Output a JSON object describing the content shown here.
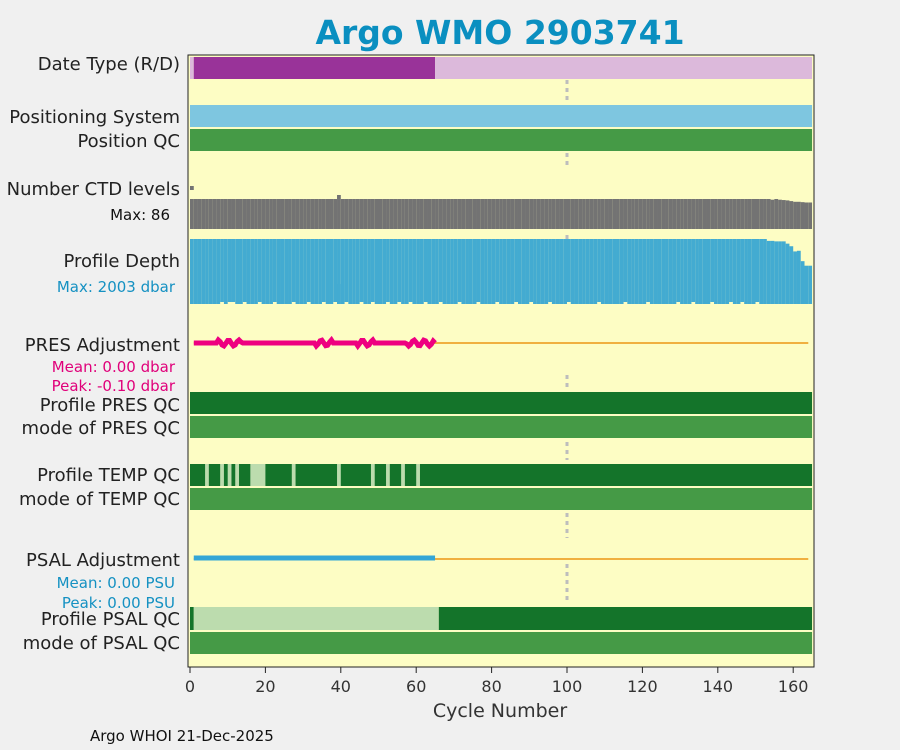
{
  "chart_data": {
    "type": "bar",
    "title": "Argo WMO 2903741",
    "xlabel": "Cycle Number",
    "xlim": [
      0,
      165
    ],
    "xticks": [
      0,
      20,
      40,
      60,
      80,
      100,
      120,
      140,
      160
    ],
    "reference_cycle": 100,
    "footer": "Argo WHOI 21-Dec-2025",
    "rows": {
      "date_type": "Date Type (R/D)",
      "positioning": "Positioning System",
      "position_qc": "Position QC",
      "ctd_levels": "Number CTD levels",
      "profile_depth": "Profile Depth",
      "pres_adj": "PRES Adjustment",
      "profile_pres_qc": "Profile PRES QC",
      "mode_pres_qc": "mode of PRES QC",
      "profile_temp_qc": "Profile TEMP QC",
      "mode_temp_qc": "mode of TEMP QC",
      "psal_adj": "PSAL Adjustment",
      "profile_psal_qc": "Profile PSAL QC",
      "mode_psal_qc": "mode of PSAL QC"
    },
    "ctd_max_label": "Max: 86",
    "depth_max_label": "Max: 2003 dbar",
    "pres_mean_label": "Mean: 0.00 dbar",
    "pres_peak_label": "Peak: -0.10 dbar",
    "psal_mean_label": "Mean: 0.00 PSU",
    "psal_peak_label": "Peak: 0.00 PSU",
    "date_type_segments": [
      {
        "from": 0,
        "to": 1,
        "type": "R"
      },
      {
        "from": 1,
        "to": 65,
        "type": "D"
      },
      {
        "from": 65,
        "to": 165,
        "type": "R"
      }
    ],
    "ctd_levels_max": 86,
    "ctd_dips": [
      {
        "cycle": 154,
        "value": 84
      },
      {
        "cycle": 156,
        "value": 84
      },
      {
        "cycle": 157,
        "value": 83
      },
      {
        "cycle": 158,
        "value": 82
      },
      {
        "cycle": 159,
        "value": 80
      },
      {
        "cycle": 160,
        "value": 78
      },
      {
        "cycle": 161,
        "value": 78
      },
      {
        "cycle": 162,
        "value": 77
      },
      {
        "cycle": 163,
        "value": 76
      },
      {
        "cycle": 164,
        "value": 76
      }
    ],
    "ctd_spike_cycle": 39,
    "depth_max": 2003,
    "depth_short_cycles": [
      8,
      10,
      11,
      14,
      18,
      22,
      27,
      31,
      35,
      38,
      41,
      45,
      48,
      52,
      55,
      58,
      62,
      66,
      71,
      76,
      81,
      86,
      90,
      95,
      100,
      108,
      115,
      121,
      129,
      133,
      138,
      143,
      146,
      150
    ],
    "depth_tail": [
      {
        "cycle": 153,
        "value": 1945
      },
      {
        "cycle": 154,
        "value": 1945
      },
      {
        "cycle": 155,
        "value": 1930
      },
      {
        "cycle": 156,
        "value": 1930
      },
      {
        "cycle": 157,
        "value": 1930
      },
      {
        "cycle": 158,
        "value": 1860
      },
      {
        "cycle": 159,
        "value": 1780
      },
      {
        "cycle": 160,
        "value": 1620
      },
      {
        "cycle": 161,
        "value": 1640
      },
      {
        "cycle": 162,
        "value": 1320
      },
      {
        "cycle": 163,
        "value": 1180
      },
      {
        "cycle": 164,
        "value": 1180
      }
    ],
    "pres_adj_range": [
      1,
      65
    ],
    "psal_adj_range": [
      1,
      65
    ],
    "temp_qc_light": [
      {
        "from": 4,
        "to": 5
      },
      {
        "from": 8,
        "to": 9
      },
      {
        "from": 10,
        "to": 11
      },
      {
        "from": 12,
        "to": 13
      },
      {
        "from": 16,
        "to": 20
      },
      {
        "from": 27,
        "to": 28
      },
      {
        "from": 39,
        "to": 40
      },
      {
        "from": 48,
        "to": 49
      },
      {
        "from": 52,
        "to": 53
      },
      {
        "from": 56,
        "to": 57
      },
      {
        "from": 60,
        "to": 61
      }
    ],
    "psal_qc_segments": [
      {
        "from": 0,
        "to": 1,
        "qc": "good"
      },
      {
        "from": 1,
        "to": 66,
        "qc": "adjusted"
      },
      {
        "from": 66,
        "to": 165,
        "qc": "good"
      }
    ],
    "colors": {
      "background": "#fdfdc4",
      "date_d": "#993399",
      "date_r": "#dcb9db",
      "positioning": "#7ec6e0",
      "qc_mode_green": "#459a46",
      "qc_dark_green": "#14742a",
      "qc_light_green": "#bcdcae",
      "ctd_gray": "#737373",
      "depth_blue": "#43abd1",
      "pres_pink": "#ee0080",
      "psal_blue": "#34a6d6",
      "zero_line": "#f0b040",
      "title": "#0a8fc0"
    }
  }
}
